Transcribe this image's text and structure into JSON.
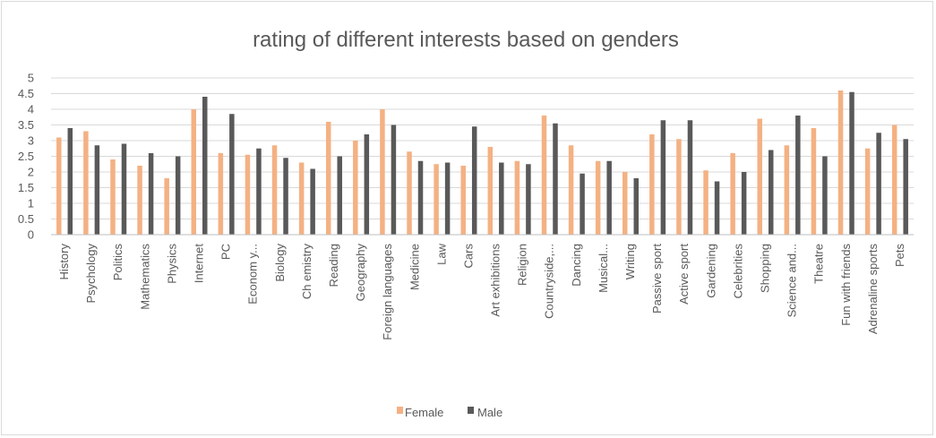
{
  "chart_data": {
    "type": "bar",
    "title": "rating of different interests based on genders",
    "xlabel": "",
    "ylabel": "",
    "ylim": [
      0,
      5
    ],
    "yticks": [
      "0",
      "0.5",
      "1",
      "1.5",
      "2",
      "2.5",
      "3",
      "3.5",
      "4",
      "4.5",
      "5"
    ],
    "grid": true,
    "legend_position": "bottom",
    "categories": [
      "History",
      "Psychology",
      "Politics",
      "Mathematics",
      "Physics",
      "Internet",
      "PC",
      "Econom y...",
      "Biology",
      "Ch emistry",
      "Reading",
      "Geography",
      "Foreign languages",
      "Medicine",
      "Law",
      "Cars",
      "Art exhibitions",
      "Religion",
      "Countryside,...",
      "Dancing",
      "Musical...",
      "Writing",
      "Passive sport",
      "Active sport",
      "Gardening",
      "Celebrities",
      "Shopping",
      "Science and...",
      "Theatre",
      "Fun with friends",
      "Adrenaline sports",
      "Pets"
    ],
    "series": [
      {
        "name": "Female",
        "color": "#f4b183",
        "values": [
          3.1,
          3.3,
          2.4,
          2.2,
          1.8,
          4.0,
          2.6,
          2.55,
          2.85,
          2.3,
          3.6,
          3.0,
          4.0,
          2.65,
          2.25,
          2.2,
          2.8,
          2.35,
          3.8,
          2.85,
          2.35,
          2.0,
          3.2,
          3.05,
          2.05,
          2.6,
          3.7,
          2.85,
          3.4,
          4.6,
          2.75,
          3.5
        ]
      },
      {
        "name": "Male",
        "color": "#595959",
        "values": [
          3.4,
          2.85,
          2.9,
          2.6,
          2.5,
          4.4,
          3.85,
          2.75,
          2.45,
          2.1,
          2.5,
          3.2,
          3.5,
          2.35,
          2.3,
          3.45,
          2.3,
          2.25,
          3.55,
          1.95,
          2.35,
          1.8,
          3.65,
          3.65,
          1.7,
          2.0,
          2.7,
          3.8,
          2.5,
          4.55,
          3.25,
          3.05
        ]
      }
    ]
  }
}
